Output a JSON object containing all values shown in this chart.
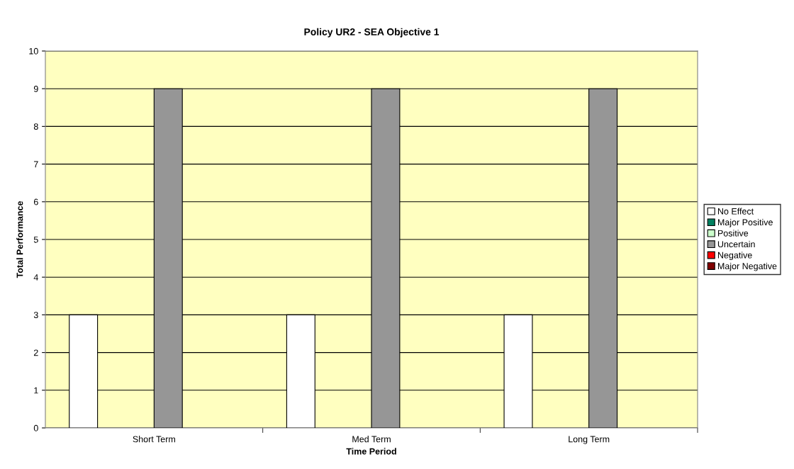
{
  "chart_data": {
    "type": "bar",
    "title": "Policy UR2 - SEA Objective 1",
    "xlabel": "Time Period",
    "ylabel": "Total Performance",
    "categories": [
      "Short Term",
      "Med Term",
      "Long Term"
    ],
    "series": [
      {
        "name": "No Effect",
        "color": "#ffffff",
        "values": [
          3,
          3,
          3
        ]
      },
      {
        "name": "Major Positive",
        "color": "#008060",
        "values": [
          0,
          0,
          0
        ]
      },
      {
        "name": "Positive",
        "color": "#ccffcc",
        "values": [
          0,
          0,
          0
        ]
      },
      {
        "name": "Uncertain",
        "color": "#969696",
        "values": [
          9,
          9,
          9
        ]
      },
      {
        "name": "Negative",
        "color": "#ff0000",
        "values": [
          0,
          0,
          0
        ]
      },
      {
        "name": "Major Negative",
        "color": "#800000",
        "values": [
          0,
          0,
          0
        ]
      }
    ],
    "ylim": [
      0,
      10
    ],
    "yticks": [
      0,
      1,
      2,
      3,
      4,
      5,
      6,
      7,
      8,
      9,
      10
    ],
    "grid": "y",
    "legend": "right"
  }
}
